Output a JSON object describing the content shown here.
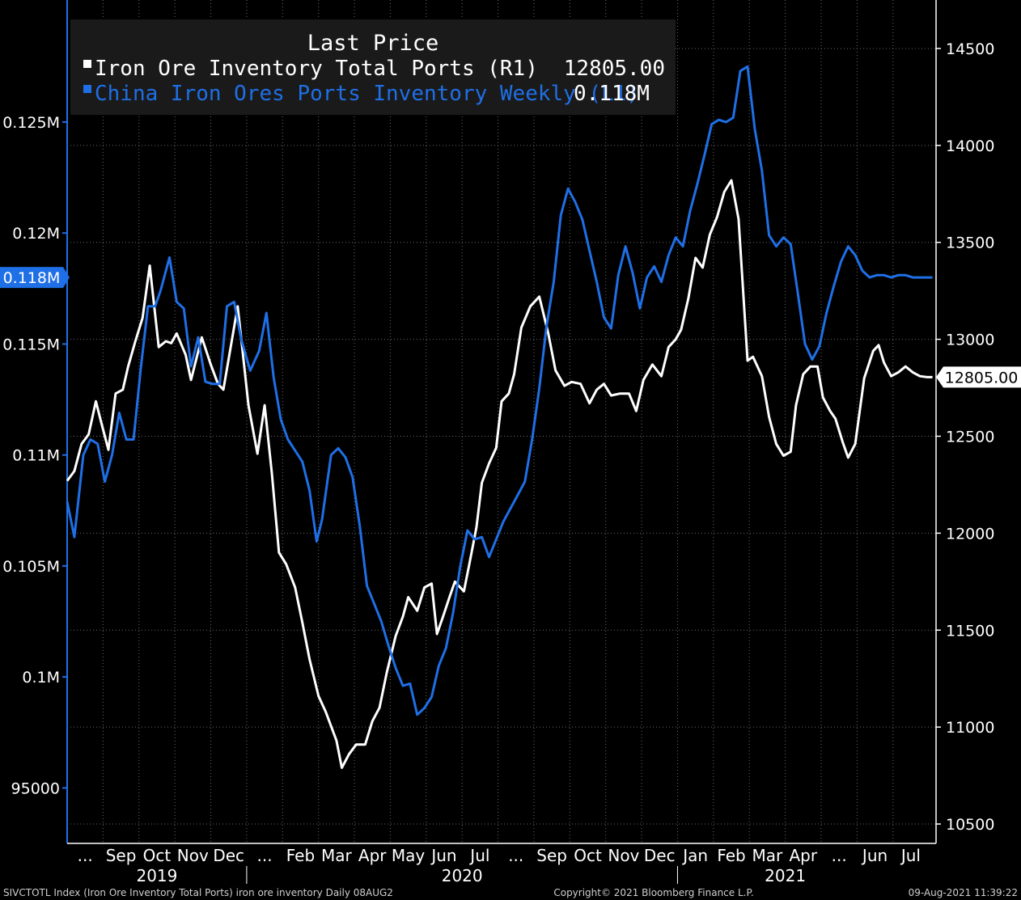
{
  "chart_data": {
    "type": "line",
    "legend": {
      "title": "Last Price",
      "placement": "top-left",
      "entries": [
        {
          "label": "Iron Ore Inventory Total Ports  (R1)",
          "value": "12805.00",
          "color": "#ffffff"
        },
        {
          "label": "China Iron Ores Ports Inventory Weekly  (L1)",
          "value": "0.118M",
          "color": "#1f6fe6"
        }
      ]
    },
    "left_axis": {
      "ylim": [
        92500,
        130500
      ],
      "ticks": [
        95000,
        100000,
        105000,
        110000,
        115000,
        120000,
        125000
      ],
      "tick_labels": [
        "95000",
        "0.1M",
        "0.105M",
        "0.11M",
        "0.115M",
        "0.12M",
        "0.125M"
      ],
      "last_value_label": "0.118M",
      "last_value": 118000,
      "color": "#1f6fe6"
    },
    "right_axis": {
      "ylim": [
        10400,
        14750
      ],
      "ticks": [
        10500,
        11000,
        11500,
        12000,
        12500,
        13000,
        13500,
        14000,
        14500
      ],
      "tick_labels": [
        "10500",
        "11000",
        "11500",
        "12000",
        "12500",
        "13000",
        "13500",
        "14000",
        "14500"
      ],
      "last_value_label": "12805.00",
      "last_value": 12805,
      "color": "#ffffff"
    },
    "x_axis": {
      "range": [
        0,
        24.2
      ],
      "months": [
        {
          "label": "...",
          "pos": 0.5
        },
        {
          "label": "Sep",
          "pos": 1.5
        },
        {
          "label": "Oct",
          "pos": 2.5
        },
        {
          "label": "Nov",
          "pos": 3.5
        },
        {
          "label": "Dec",
          "pos": 4.5
        },
        {
          "label": "...",
          "pos": 5.5
        },
        {
          "label": "Feb",
          "pos": 6.5
        },
        {
          "label": "Mar",
          "pos": 7.5
        },
        {
          "label": "Apr",
          "pos": 8.5
        },
        {
          "label": "May",
          "pos": 9.5
        },
        {
          "label": "Jun",
          "pos": 10.5
        },
        {
          "label": "Jul",
          "pos": 11.5
        },
        {
          "label": "...",
          "pos": 12.5
        },
        {
          "label": "Sep",
          "pos": 13.5
        },
        {
          "label": "Oct",
          "pos": 14.5
        },
        {
          "label": "Nov",
          "pos": 15.5
        },
        {
          "label": "Dec",
          "pos": 16.5
        },
        {
          "label": "Jan",
          "pos": 17.5
        },
        {
          "label": "Feb",
          "pos": 18.5
        },
        {
          "label": "Mar",
          "pos": 19.5
        },
        {
          "label": "Apr",
          "pos": 20.5
        },
        {
          "label": "...",
          "pos": 21.5
        },
        {
          "label": "Jun",
          "pos": 22.5
        },
        {
          "label": "Jul",
          "pos": 23.5
        }
      ],
      "years": [
        {
          "label": "2019",
          "pos": 2.5
        },
        {
          "label": "2020",
          "pos": 11.0
        },
        {
          "label": "2021",
          "pos": 20.0
        }
      ],
      "year_separators": [
        5,
        17
      ]
    },
    "grid": true,
    "series": [
      {
        "name": "Iron Ore Inventory Total Ports  (R1)",
        "axis": "right",
        "color": "#ffffff",
        "x": [
          0.0,
          0.2,
          0.4,
          0.6,
          0.8,
          0.95,
          1.15,
          1.35,
          1.55,
          1.7,
          1.9,
          2.1,
          2.3,
          2.55,
          2.75,
          2.9,
          3.05,
          3.3,
          3.45,
          3.75,
          4.0,
          4.2,
          4.35,
          4.75,
          5.05,
          5.3,
          5.5,
          5.7,
          5.9,
          6.1,
          6.35,
          6.55,
          6.75,
          7.0,
          7.2,
          7.5,
          7.65,
          7.85,
          8.05,
          8.3,
          8.5,
          8.7,
          8.9,
          9.15,
          9.35,
          9.5,
          9.75,
          9.95,
          10.15,
          10.3,
          10.45,
          10.65,
          10.8,
          11.05,
          11.2,
          11.4,
          11.55,
          11.75,
          11.95,
          12.1,
          12.3,
          12.45,
          12.65,
          12.9,
          13.15,
          13.4,
          13.6,
          13.85,
          14.05,
          14.3,
          14.55,
          14.75,
          14.95,
          15.15,
          15.4,
          15.65,
          15.85,
          16.05,
          16.3,
          16.55,
          16.75,
          16.95,
          17.1,
          17.3,
          17.5,
          17.7,
          17.9,
          18.1,
          18.3,
          18.5,
          18.7,
          18.95,
          19.1,
          19.35,
          19.55,
          19.75,
          19.95,
          20.15,
          20.3,
          20.5,
          20.7,
          20.9,
          21.05,
          21.25,
          21.4,
          21.6,
          21.75,
          21.95,
          22.2,
          22.45,
          22.6,
          22.75,
          22.95,
          23.15,
          23.35,
          23.55,
          23.75,
          23.95,
          24.1
        ],
        "values": [
          12270,
          12320,
          12460,
          12510,
          12680,
          12570,
          12430,
          12720,
          12740,
          12860,
          12990,
          13110,
          13380,
          12960,
          12990,
          12980,
          13030,
          12920,
          12790,
          13010,
          12870,
          12770,
          12740,
          13170,
          12660,
          12410,
          12660,
          12310,
          11900,
          11840,
          11720,
          11540,
          11350,
          11160,
          11080,
          10930,
          10790,
          10860,
          10910,
          10910,
          11030,
          11100,
          11280,
          11470,
          11570,
          11670,
          11600,
          11720,
          11740,
          11480,
          11560,
          11670,
          11750,
          11700,
          11840,
          12030,
          12260,
          12360,
          12440,
          12680,
          12720,
          12820,
          13060,
          13170,
          13220,
          13030,
          12840,
          12760,
          12780,
          12770,
          12670,
          12740,
          12770,
          12710,
          12720,
          12720,
          12630,
          12790,
          12870,
          12810,
          12960,
          13000,
          13050,
          13210,
          13420,
          13370,
          13540,
          13630,
          13760,
          13820,
          13620,
          12890,
          12910,
          12810,
          12600,
          12460,
          12400,
          12420,
          12660,
          12820,
          12860,
          12860,
          12700,
          12630,
          12590,
          12470,
          12390,
          12460,
          12800,
          12940,
          12970,
          12880,
          12810,
          12830,
          12860,
          12830,
          12810,
          12805,
          12805
        ]
      },
      {
        "name": "China Iron Ores Ports Inventory Weekly  (L1)",
        "axis": "left",
        "color": "#1f6fe6",
        "x": [
          0.0,
          0.2,
          0.45,
          0.65,
          0.85,
          1.05,
          1.25,
          1.45,
          1.65,
          1.85,
          2.05,
          2.25,
          2.45,
          2.6,
          2.85,
          3.05,
          3.25,
          3.45,
          3.65,
          3.85,
          4.05,
          4.25,
          4.45,
          4.65,
          4.85,
          5.1,
          5.35,
          5.55,
          5.75,
          5.95,
          6.15,
          6.35,
          6.55,
          6.75,
          6.95,
          7.1,
          7.35,
          7.55,
          7.75,
          7.95,
          8.15,
          8.35,
          8.55,
          8.75,
          8.95,
          9.15,
          9.35,
          9.55,
          9.75,
          9.95,
          10.15,
          10.35,
          10.55,
          10.75,
          10.95,
          11.15,
          11.35,
          11.55,
          11.75,
          11.95,
          12.15,
          12.35,
          12.55,
          12.75,
          12.95,
          13.15,
          13.35,
          13.55,
          13.75,
          13.95,
          14.15,
          14.35,
          14.55,
          14.75,
          14.95,
          15.15,
          15.35,
          15.55,
          15.75,
          15.95,
          16.15,
          16.35,
          16.55,
          16.75,
          16.95,
          17.15,
          17.35,
          17.55,
          17.75,
          17.95,
          18.15,
          18.35,
          18.55,
          18.75,
          18.95,
          19.15,
          19.35,
          19.55,
          19.75,
          19.95,
          20.15,
          20.35,
          20.55,
          20.75,
          20.95,
          21.15,
          21.35,
          21.55,
          21.75,
          21.95,
          22.15,
          22.35,
          22.55,
          22.75,
          22.95,
          23.15,
          23.35,
          23.55,
          23.75,
          23.95,
          24.1
        ],
        "values": [
          107900,
          106300,
          110000,
          110700,
          110500,
          108800,
          110000,
          111900,
          110700,
          110700,
          113900,
          116700,
          116700,
          117400,
          118900,
          116900,
          116600,
          114000,
          115300,
          113300,
          113200,
          113200,
          116700,
          116900,
          115200,
          113800,
          114700,
          116400,
          113500,
          111600,
          110700,
          110200,
          109700,
          108400,
          106100,
          107100,
          110000,
          110300,
          109900,
          109000,
          106800,
          104100,
          103300,
          102500,
          101400,
          100400,
          99600,
          99700,
          98300,
          98600,
          99100,
          100500,
          101300,
          102900,
          105000,
          106600,
          106200,
          106300,
          105400,
          106200,
          107000,
          107600,
          108200,
          108800,
          110700,
          113000,
          115800,
          117800,
          120800,
          122000,
          121400,
          120600,
          119200,
          117800,
          116200,
          115700,
          118100,
          119400,
          118200,
          116600,
          118000,
          118500,
          117800,
          119000,
          119800,
          119400,
          121000,
          122200,
          123500,
          124900,
          125100,
          125000,
          125200,
          127300,
          127500,
          124700,
          122800,
          119900,
          119400,
          119800,
          119500,
          117300,
          115000,
          114300,
          114900,
          116400,
          117600,
          118700,
          119400,
          119000,
          118300,
          118000,
          118100,
          118100,
          118000,
          118100,
          118100,
          118000,
          118000,
          118000,
          118000
        ]
      }
    ],
    "footer": {
      "left": "SIVCTOTL Index (Iron Ore Inventory Total Ports) iron ore inventory  Daily 08AUG2",
      "center": "Copyright© 2021 Bloomberg Finance L.P.",
      "right": "09-Aug-2021 11:39:22"
    }
  }
}
